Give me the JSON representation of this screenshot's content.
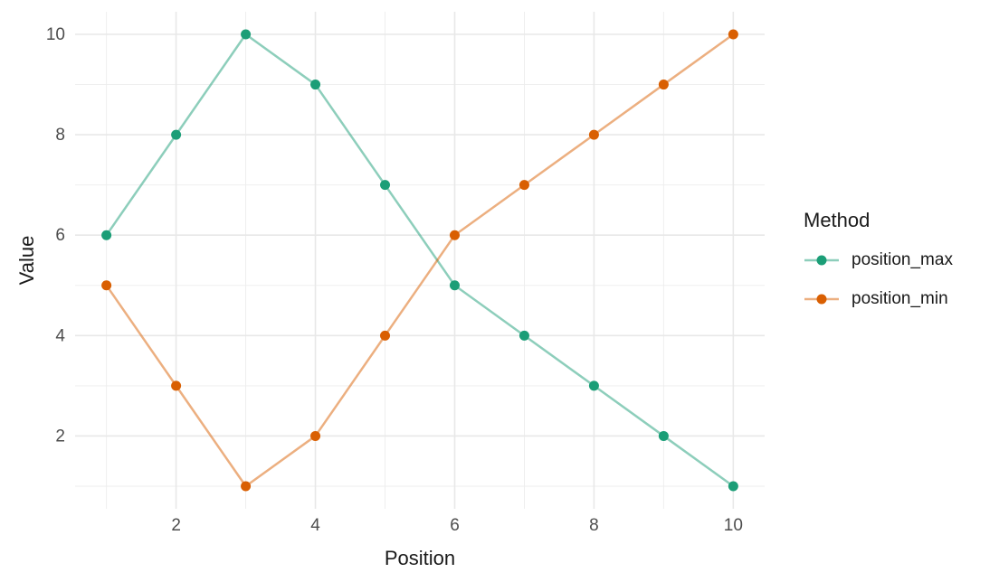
{
  "chart_data": {
    "type": "line",
    "title": "",
    "xlabel": "Position",
    "ylabel": "Value",
    "legend_title": "Method",
    "legend_position": "right",
    "x": [
      1,
      2,
      3,
      4,
      5,
      6,
      7,
      8,
      9,
      10
    ],
    "series": [
      {
        "name": "position_max",
        "color": "#1b9e77",
        "values": [
          6,
          8,
          10,
          9,
          7,
          5,
          4,
          3,
          2,
          1
        ]
      },
      {
        "name": "position_min",
        "color": "#d95f02",
        "values": [
          5,
          3,
          1,
          2,
          4,
          6,
          7,
          8,
          9,
          10
        ]
      }
    ],
    "x_ticks": [
      2,
      4,
      6,
      8,
      10
    ],
    "y_ticks": [
      2,
      4,
      6,
      8,
      10
    ],
    "x_minor_gridlines": [
      1,
      3,
      5,
      7,
      9
    ],
    "y_minor_gridlines": [
      1,
      3,
      5,
      7,
      9
    ],
    "xlim": [
      0.55,
      10.45
    ],
    "ylim": [
      0.55,
      10.45
    ],
    "grid": true,
    "style": {
      "background": "#ffffff",
      "grid_major_color": "#e8e8e8",
      "grid_minor_color": "#ededed",
      "tick_label_color": "#4d4d4d",
      "axis_title_color": "#1a1a1a",
      "line_opacity": 0.5
    }
  }
}
